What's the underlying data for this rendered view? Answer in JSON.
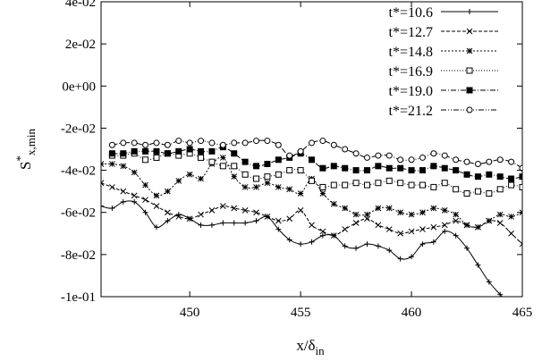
{
  "chart_data": {
    "type": "line",
    "xlabel": "x/δ",
    "xlabel_sub": "in",
    "ylabel": "S",
    "ylabel_sup": "*",
    "ylabel_sub": "x,min",
    "xlim": [
      446,
      465
    ],
    "ylim": [
      -0.1,
      0.04
    ],
    "xticks": [
      450,
      455,
      460,
      465
    ],
    "xtick_labels": [
      "450",
      "455",
      "460",
      "465"
    ],
    "yticks": [
      0.04,
      0.02,
      0.0,
      -0.02,
      -0.04,
      -0.06,
      -0.08,
      -0.1
    ],
    "ytick_labels": [
      "4e-02",
      "2e-02",
      "0e+00",
      "-2e-02",
      "-4e-02",
      "-6e-02",
      "-8e-02",
      "-1e-01"
    ],
    "legend_position": "top-right",
    "grid": false,
    "series": [
      {
        "name": "t*=10.6",
        "marker": "plus",
        "dash": "",
        "x": [
          446.0,
          446.5,
          447.0,
          447.5,
          448.0,
          448.5,
          449.0,
          449.5,
          450.0,
          450.5,
          451.0,
          451.5,
          452.0,
          452.5,
          453.0,
          453.5,
          454.0,
          454.5,
          455.0,
          455.5,
          456.0,
          456.5,
          457.0,
          457.5,
          458.0,
          458.5,
          459.0,
          459.5,
          460.0,
          460.5,
          461.0,
          461.5,
          462.0,
          462.5,
          463.0,
          463.5,
          464.0,
          464.5,
          465.0
        ],
        "y": [
          -0.057,
          -0.058,
          -0.055,
          -0.055,
          -0.06,
          -0.067,
          -0.064,
          -0.061,
          -0.063,
          -0.066,
          -0.066,
          -0.065,
          -0.065,
          -0.065,
          -0.064,
          -0.062,
          -0.068,
          -0.073,
          -0.075,
          -0.074,
          -0.071,
          -0.071,
          -0.076,
          -0.077,
          -0.075,
          -0.076,
          -0.078,
          -0.082,
          -0.081,
          -0.075,
          -0.074,
          -0.069,
          -0.071,
          -0.077,
          -0.085,
          -0.093,
          -0.099,
          -0.105,
          -0.11
        ]
      },
      {
        "name": "t*=12.7",
        "marker": "x",
        "dash": "4,2",
        "x": [
          446.0,
          446.5,
          447.0,
          447.5,
          448.0,
          448.5,
          449.0,
          449.5,
          450.0,
          450.5,
          451.0,
          451.5,
          452.0,
          452.5,
          453.0,
          453.5,
          454.0,
          454.5,
          455.0,
          455.5,
          456.0,
          456.5,
          457.0,
          457.5,
          458.0,
          458.5,
          459.0,
          459.5,
          460.0,
          460.5,
          461.0,
          461.5,
          462.0,
          462.5,
          463.0,
          463.5,
          464.0,
          464.5,
          465.0
        ],
        "y": [
          -0.046,
          -0.048,
          -0.05,
          -0.052,
          -0.054,
          -0.057,
          -0.06,
          -0.062,
          -0.063,
          -0.061,
          -0.059,
          -0.057,
          -0.058,
          -0.059,
          -0.06,
          -0.062,
          -0.064,
          -0.063,
          -0.059,
          -0.066,
          -0.069,
          -0.071,
          -0.068,
          -0.065,
          -0.063,
          -0.066,
          -0.068,
          -0.07,
          -0.069,
          -0.068,
          -0.067,
          -0.066,
          -0.064,
          -0.066,
          -0.067,
          -0.064,
          -0.065,
          -0.07,
          -0.075
        ]
      },
      {
        "name": "t*=14.8",
        "marker": "star",
        "dash": "2,2",
        "x": [
          446.0,
          446.5,
          447.0,
          447.5,
          448.0,
          448.5,
          449.0,
          449.5,
          450.0,
          450.5,
          451.0,
          451.5,
          452.0,
          452.5,
          453.0,
          453.5,
          454.0,
          454.5,
          455.0,
          455.5,
          456.0,
          456.5,
          457.0,
          457.5,
          458.0,
          458.5,
          459.0,
          459.5,
          460.0,
          460.5,
          461.0,
          461.5,
          462.0,
          462.5,
          463.0,
          463.5,
          464.0,
          464.5,
          465.0
        ],
        "y": [
          -0.037,
          -0.037,
          -0.038,
          -0.041,
          -0.047,
          -0.052,
          -0.05,
          -0.045,
          -0.042,
          -0.044,
          -0.037,
          -0.034,
          -0.043,
          -0.048,
          -0.048,
          -0.046,
          -0.048,
          -0.049,
          -0.051,
          -0.044,
          -0.051,
          -0.056,
          -0.058,
          -0.061,
          -0.061,
          -0.058,
          -0.058,
          -0.06,
          -0.061,
          -0.06,
          -0.058,
          -0.059,
          -0.061,
          -0.066,
          -0.067,
          -0.064,
          -0.061,
          -0.062,
          -0.06
        ]
      },
      {
        "name": "t*=16.9",
        "marker": "square-open",
        "dash": "1,2",
        "x": [
          446.5,
          447.0,
          447.5,
          448.0,
          448.5,
          449.0,
          449.5,
          450.0,
          450.5,
          451.0,
          451.5,
          452.0,
          452.5,
          453.0,
          453.5,
          454.0,
          454.5,
          455.0,
          455.5,
          456.0,
          456.5,
          457.0,
          457.5,
          458.0,
          458.5,
          459.0,
          459.5,
          460.0,
          460.5,
          461.0,
          461.5,
          462.0,
          462.5,
          463.0,
          463.5,
          464.0,
          464.5,
          465.0
        ],
        "y": [
          -0.033,
          -0.033,
          -0.032,
          -0.035,
          -0.034,
          -0.032,
          -0.033,
          -0.032,
          -0.034,
          -0.036,
          -0.038,
          -0.038,
          -0.042,
          -0.044,
          -0.043,
          -0.042,
          -0.04,
          -0.04,
          -0.045,
          -0.048,
          -0.047,
          -0.047,
          -0.046,
          -0.047,
          -0.046,
          -0.045,
          -0.046,
          -0.047,
          -0.047,
          -0.048,
          -0.046,
          -0.049,
          -0.051,
          -0.05,
          -0.051,
          -0.049,
          -0.047,
          -0.048
        ]
      },
      {
        "name": "t*=19.0",
        "marker": "square-filled",
        "dash": "6,2,1,2",
        "x": [
          446.5,
          447.0,
          447.5,
          448.0,
          448.5,
          449.0,
          449.5,
          450.0,
          450.5,
          451.0,
          451.5,
          452.0,
          452.5,
          453.0,
          453.5,
          454.0,
          454.5,
          455.0,
          455.5,
          456.0,
          456.5,
          457.0,
          457.5,
          458.0,
          458.5,
          459.0,
          459.5,
          460.0,
          460.5,
          461.0,
          461.5,
          462.0,
          462.5,
          463.0,
          463.5,
          464.0,
          464.5,
          465.0
        ],
        "y": [
          -0.032,
          -0.032,
          -0.031,
          -0.031,
          -0.031,
          -0.032,
          -0.031,
          -0.03,
          -0.031,
          -0.031,
          -0.029,
          -0.032,
          -0.036,
          -0.038,
          -0.037,
          -0.035,
          -0.034,
          -0.032,
          -0.035,
          -0.039,
          -0.038,
          -0.039,
          -0.04,
          -0.04,
          -0.038,
          -0.039,
          -0.039,
          -0.04,
          -0.04,
          -0.038,
          -0.039,
          -0.04,
          -0.042,
          -0.043,
          -0.042,
          -0.043,
          -0.044,
          -0.043
        ]
      },
      {
        "name": "t*=21.2",
        "marker": "circle-open",
        "dash": "6,2,1,2,1,2",
        "x": [
          446.5,
          447.0,
          447.5,
          448.0,
          448.5,
          449.0,
          449.5,
          450.0,
          450.5,
          451.0,
          451.5,
          452.0,
          452.5,
          453.0,
          453.5,
          454.0,
          454.5,
          455.0,
          455.5,
          456.0,
          456.5,
          457.0,
          457.5,
          458.0,
          458.5,
          459.0,
          459.5,
          460.0,
          460.5,
          461.0,
          461.5,
          462.0,
          462.5,
          463.0,
          463.5,
          464.0,
          464.5,
          465.0
        ],
        "y": [
          -0.028,
          -0.027,
          -0.027,
          -0.028,
          -0.027,
          -0.028,
          -0.026,
          -0.027,
          -0.026,
          -0.027,
          -0.028,
          -0.027,
          -0.027,
          -0.026,
          -0.026,
          -0.028,
          -0.033,
          -0.031,
          -0.027,
          -0.026,
          -0.028,
          -0.03,
          -0.032,
          -0.034,
          -0.033,
          -0.033,
          -0.035,
          -0.035,
          -0.034,
          -0.032,
          -0.033,
          -0.035,
          -0.036,
          -0.037,
          -0.036,
          -0.035,
          -0.036,
          -0.039
        ]
      }
    ]
  }
}
